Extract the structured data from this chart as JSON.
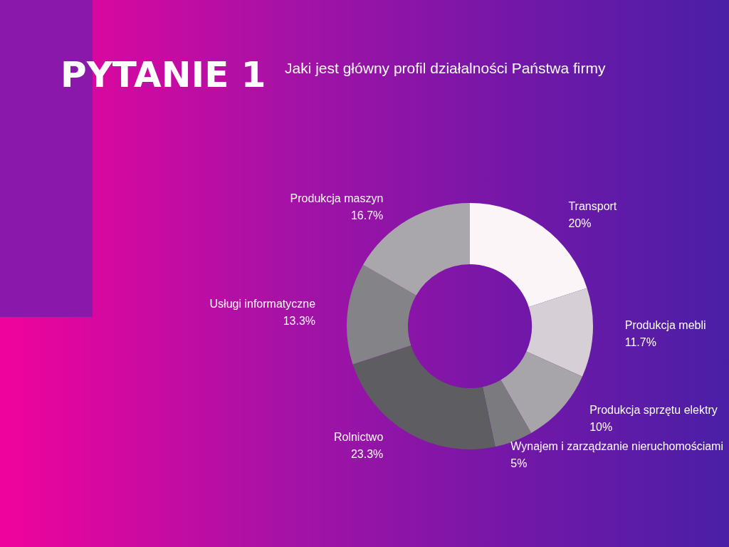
{
  "chart_data": {
    "type": "donut",
    "title": "PYTANIE 1",
    "subtitle": "Jaki jest główny profil działalności Państwa firmy",
    "categories": [
      "Transport",
      "Produkcja mebli",
      "Produkcja sprzętu elektry",
      "Wynajem i zarządzanie nieruchomościami",
      "Rolnictwo",
      "Usługi informatyczne",
      "Produkcja maszyn"
    ],
    "values": [
      20,
      11.7,
      10,
      5,
      23.3,
      13.3,
      16.7
    ],
    "value_labels": [
      "20%",
      "11.7%",
      "10%",
      "5%",
      "23.3%",
      "13.3%",
      "16.7%"
    ],
    "colors": [
      "#fcf5f8",
      "#d6d0d6",
      "#a8a5aa",
      "#7b7a7f",
      "#5d5d62",
      "#848387",
      "#a9a7ab"
    ],
    "legend": false
  }
}
